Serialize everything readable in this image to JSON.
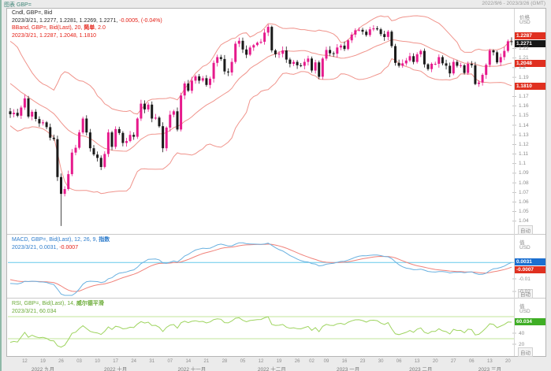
{
  "window": {
    "app_label": "图表 GBP=",
    "date_range": "2022/9/6 - 2023/3/26 (GMT)"
  },
  "colors": {
    "up": "#e61a8c",
    "down": "#1a1a1a",
    "band": "#f0948c",
    "macd": "#6ab1e0",
    "signal": "#f0827a",
    "macd_hline": "#66c9ea",
    "rsi": "#9ed45f",
    "rsi_ref": "#c2e49a"
  },
  "main_panel": {
    "legend": {
      "line1": "Cndl, GBP=, Bid",
      "line2_a": "2023/3/21, 1.2277, 1.2281, 1.2269, 1.2271,",
      "line2_b": " -0.0005, (-0.04%)",
      "line3_a": "BBand, GBP=, Bid(Last), 20, ",
      "line3_b": "简单",
      "line3_c": ", 2.0",
      "line4": "2023/3/21, 1.2287, 1.2048, 1.1810"
    },
    "axis": {
      "title": "价格",
      "unit": "USD",
      "auto_label": "自动",
      "ticks": [
        {
          "v": 1.22,
          "t": "1.22"
        },
        {
          "v": 1.21,
          "t": "1.21"
        },
        {
          "v": 1.2,
          "t": "1.2"
        },
        {
          "v": 1.19,
          "t": "1.19"
        },
        {
          "v": 1.17,
          "t": "1.17"
        },
        {
          "v": 1.16,
          "t": "1.16"
        },
        {
          "v": 1.15,
          "t": "1.15"
        },
        {
          "v": 1.14,
          "t": "1.14"
        },
        {
          "v": 1.13,
          "t": "1.13"
        },
        {
          "v": 1.12,
          "t": "1.12"
        },
        {
          "v": 1.11,
          "t": "1.11"
        },
        {
          "v": 1.1,
          "t": "1.1"
        },
        {
          "v": 1.09,
          "t": "1.09"
        },
        {
          "v": 1.08,
          "t": "1.08"
        },
        {
          "v": 1.07,
          "t": "1.07"
        },
        {
          "v": 1.06,
          "t": "1.06"
        },
        {
          "v": 1.05,
          "t": "1.05"
        },
        {
          "v": 1.04,
          "t": "1.04"
        }
      ]
    },
    "badges": {
      "upper": "1.2287",
      "last": "1.2271",
      "middle": "1.2048",
      "lower": "1.1810"
    }
  },
  "macd_panel": {
    "legend": {
      "line1_a": "MACD, GBP=, Bid(Last), 12, 26, 9, ",
      "line1_b": "指数",
      "line2_a": "2023/3/21, 0.0031, ",
      "line2_b": "-0.0007"
    },
    "axis": {
      "title": "值",
      "unit": "USD",
      "auto_label": "自动",
      "ticks": [
        {
          "v": -0.01,
          "t": "-0.01"
        },
        {
          "v": -0.02,
          "t": "-0.02"
        }
      ]
    },
    "badges": {
      "macd": "0.0031",
      "signal": "-0.0007"
    }
  },
  "rsi_panel": {
    "legend": {
      "line1_a": "RSI, GBP=, Bid(Last), 14, ",
      "line1_b": "威尔德平滑",
      "line2": "2023/3/21, 60.034"
    },
    "axis": {
      "title": "值",
      "unit": "USD",
      "auto_label": "自动",
      "ticks": [
        {
          "v": 40,
          "t": "40"
        },
        {
          "v": 20,
          "t": "20"
        }
      ]
    },
    "badges": {
      "rsi": "60.034"
    },
    "reference_levels": [
      70,
      30
    ]
  },
  "time_axis": {
    "weeks": [
      {
        "i": 4,
        "t": "12"
      },
      {
        "i": 9,
        "t": "19"
      },
      {
        "i": 14,
        "t": "26"
      },
      {
        "i": 19,
        "t": "03"
      },
      {
        "i": 24,
        "t": "10"
      },
      {
        "i": 29,
        "t": "17"
      },
      {
        "i": 34,
        "t": "24"
      },
      {
        "i": 39,
        "t": "31"
      },
      {
        "i": 44,
        "t": "07"
      },
      {
        "i": 49,
        "t": "14"
      },
      {
        "i": 54,
        "t": "21"
      },
      {
        "i": 59,
        "t": "28"
      },
      {
        "i": 64,
        "t": "05"
      },
      {
        "i": 69,
        "t": "12"
      },
      {
        "i": 74,
        "t": "19"
      },
      {
        "i": 79,
        "t": "26"
      },
      {
        "i": 83,
        "t": "02"
      },
      {
        "i": 87,
        "t": "09"
      },
      {
        "i": 92,
        "t": "16"
      },
      {
        "i": 97,
        "t": "23"
      },
      {
        "i": 102,
        "t": "30"
      },
      {
        "i": 107,
        "t": "06"
      },
      {
        "i": 112,
        "t": "13"
      },
      {
        "i": 117,
        "t": "20"
      },
      {
        "i": 122,
        "t": "27"
      },
      {
        "i": 127,
        "t": "06"
      },
      {
        "i": 132,
        "t": "13"
      },
      {
        "i": 137,
        "t": "20"
      }
    ],
    "months": [
      {
        "index": 9,
        "label": "2022 九月"
      },
      {
        "index": 29,
        "label": "2022 十月"
      },
      {
        "index": 50,
        "label": "2022 十一月"
      },
      {
        "index": 72,
        "label": "2022 十二月"
      },
      {
        "index": 93,
        "label": "2023 一月"
      },
      {
        "index": 113,
        "label": "2023 二月"
      },
      {
        "index": 132,
        "label": "2023 三月"
      }
    ]
  },
  "chart_data": {
    "type": "candlestick+indicators",
    "instrument": "GBP=",
    "price_field": "Bid",
    "interval": "daily",
    "last_date": "2023/3/21",
    "ohlc_last": {
      "open": 1.2277,
      "high": 1.2281,
      "low": 1.2269,
      "close": 1.2271,
      "change": -0.0005,
      "change_pct": "-0.04%"
    },
    "y_axis": {
      "min": 1.03,
      "max": 1.25
    },
    "bollinger": {
      "period": 20,
      "mode": "简单",
      "stdev": 2,
      "last_upper": 1.2287,
      "last_middle": 1.2048,
      "last_lower": 1.181
    },
    "macd": {
      "fast": 12,
      "slow": 26,
      "signal_period": 9,
      "mode": "指数",
      "last_macd": 0.0031,
      "last_signal": -0.0007
    },
    "rsi": {
      "period": 14,
      "mode": "威尔德平滑",
      "last": 60.034,
      "reference": [
        70,
        30
      ]
    },
    "flash_crash": {
      "index": 14,
      "low": 1.035
    },
    "warmup_closes": [
      1.2075,
      1.21,
      1.212,
      1.2215,
      1.2135,
      1.2095,
      1.2045,
      1.1965,
      1.192,
      1.183,
      1.177,
      1.1835,
      1.18,
      1.1735,
      1.163,
      1.1595,
      1.165,
      1.162,
      1.158,
      1.1545
    ],
    "closes": [
      1.1515,
      1.153,
      1.15,
      1.1585,
      1.168,
      1.149,
      1.154,
      1.1465,
      1.142,
      1.143,
      1.138,
      1.127,
      1.1255,
      1.086,
      1.0685,
      1.0735,
      1.089,
      1.1115,
      1.1165,
      1.1325,
      1.147,
      1.1325,
      1.116,
      1.1095,
      1.106,
      1.0965,
      1.11,
      1.1325,
      1.1175,
      1.136,
      1.132,
      1.1215,
      1.1235,
      1.13,
      1.128,
      1.147,
      1.1625,
      1.1565,
      1.1615,
      1.147,
      1.148,
      1.139,
      1.116,
      1.1375,
      1.151,
      1.1545,
      1.1355,
      1.171,
      1.1835,
      1.176,
      1.1865,
      1.191,
      1.1865,
      1.189,
      1.182,
      1.1885,
      1.205,
      1.211,
      1.209,
      1.196,
      1.195,
      1.206,
      1.225,
      1.228,
      1.219,
      1.2135,
      1.221,
      1.2235,
      1.226,
      1.227,
      1.2365,
      1.2425,
      1.218,
      1.214,
      1.2145,
      1.218,
      1.2085,
      1.204,
      1.206,
      1.2025,
      1.202,
      1.206,
      1.2095,
      1.197,
      1.2055,
      1.1905,
      1.2095,
      1.2185,
      1.215,
      1.2145,
      1.221,
      1.223,
      1.2195,
      1.2285,
      1.2345,
      1.239,
      1.2395,
      1.2375,
      1.234,
      1.24,
      1.241,
      1.24,
      1.235,
      1.232,
      1.2375,
      1.2225,
      1.205,
      1.202,
      1.2045,
      1.2075,
      1.212,
      1.206,
      1.214,
      1.2175,
      1.2035,
      1.1985,
      1.204,
      1.204,
      1.211,
      1.2045,
      1.202,
      1.194,
      1.206,
      1.202,
      1.2025,
      1.1945,
      1.204,
      1.2025,
      1.183,
      1.1845,
      1.1925,
      1.203,
      1.218,
      1.216,
      1.2055,
      1.211,
      1.2175,
      1.2275,
      1.2271
    ]
  }
}
